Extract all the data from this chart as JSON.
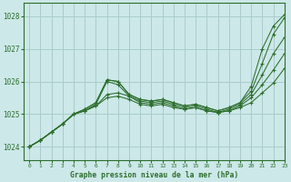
{
  "title": "Graphe pression niveau de la mer (hPa)",
  "bg_color": "#cce8e8",
  "grid_color": "#aacccc",
  "line_color": "#2d6e2d",
  "xlim": [
    -0.5,
    23
  ],
  "ylim": [
    1023.6,
    1028.4
  ],
  "yticks": [
    1024,
    1025,
    1026,
    1027,
    1028
  ],
  "xticks": [
    0,
    1,
    2,
    3,
    4,
    5,
    6,
    7,
    8,
    9,
    10,
    11,
    12,
    13,
    14,
    15,
    16,
    17,
    18,
    19,
    20,
    21,
    22,
    23
  ],
  "series": [
    [
      1024.0,
      1024.2,
      1024.45,
      1024.7,
      1025.0,
      1025.1,
      1025.25,
      1025.5,
      1025.55,
      1025.45,
      1025.3,
      1025.25,
      1025.3,
      1025.2,
      1025.15,
      1025.2,
      1025.1,
      1025.05,
      1025.1,
      1025.2,
      1025.35,
      1025.65,
      1025.95,
      1026.4
    ],
    [
      1024.0,
      1024.2,
      1024.45,
      1024.7,
      1025.0,
      1025.1,
      1025.25,
      1025.6,
      1025.65,
      1025.55,
      1025.35,
      1025.3,
      1025.35,
      1025.25,
      1025.15,
      1025.2,
      1025.1,
      1025.05,
      1025.1,
      1025.25,
      1025.5,
      1025.9,
      1026.35,
      1026.85
    ],
    [
      1024.0,
      1024.2,
      1024.45,
      1024.7,
      1025.0,
      1025.1,
      1025.3,
      1026.0,
      1025.9,
      1025.55,
      1025.4,
      1025.35,
      1025.4,
      1025.3,
      1025.2,
      1025.25,
      1025.15,
      1025.05,
      1025.15,
      1025.3,
      1025.6,
      1026.2,
      1026.85,
      1027.35
    ],
    [
      1024.0,
      1024.2,
      1024.45,
      1024.7,
      1025.0,
      1025.15,
      1025.35,
      1026.05,
      1026.0,
      1025.6,
      1025.45,
      1025.4,
      1025.45,
      1025.35,
      1025.25,
      1025.3,
      1025.2,
      1025.1,
      1025.2,
      1025.35,
      1025.7,
      1026.55,
      1027.45,
      1027.95
    ],
    [
      1024.0,
      1024.2,
      1024.45,
      1024.7,
      1025.0,
      1025.15,
      1025.35,
      1026.05,
      1026.0,
      1025.6,
      1025.45,
      1025.4,
      1025.45,
      1025.35,
      1025.25,
      1025.3,
      1025.2,
      1025.1,
      1025.2,
      1025.35,
      1025.85,
      1027.0,
      1027.7,
      1028.05
    ]
  ]
}
